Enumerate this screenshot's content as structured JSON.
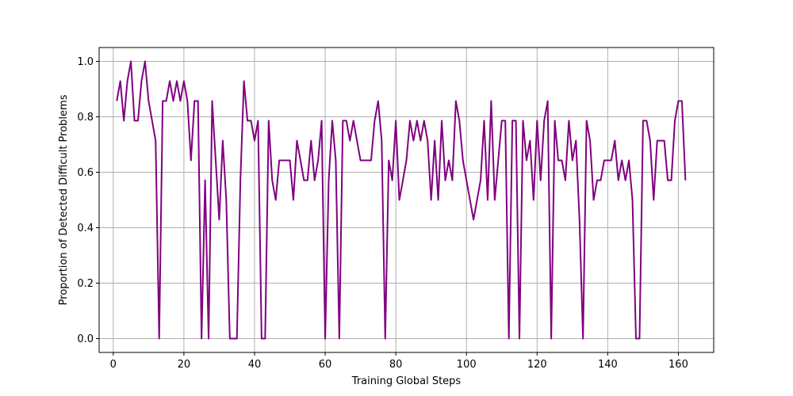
{
  "chart_data": {
    "type": "line",
    "title": "",
    "xlabel": "Training Global Steps",
    "ylabel": "Proportion of Detected Difficult Problems",
    "xlim": [
      -4,
      170
    ],
    "ylim": [
      -0.05,
      1.05
    ],
    "xticks": [
      0,
      20,
      40,
      60,
      80,
      100,
      120,
      140,
      160
    ],
    "yticks": [
      0.0,
      0.2,
      0.4,
      0.6,
      0.8,
      1.0
    ],
    "xtick_labels": [
      "0",
      "20",
      "40",
      "60",
      "80",
      "100",
      "120",
      "140",
      "160"
    ],
    "ytick_labels": [
      "0.0",
      "0.2",
      "0.4",
      "0.6",
      "0.8",
      "1.0"
    ],
    "grid": true,
    "series": [
      {
        "color": "#800080",
        "x": [
          1,
          2,
          3,
          4,
          5,
          6,
          7,
          8,
          9,
          10,
          11,
          12,
          13,
          14,
          15,
          16,
          17,
          18,
          19,
          20,
          21,
          22,
          23,
          24,
          25,
          26,
          27,
          28,
          29,
          30,
          31,
          32,
          33,
          34,
          35,
          36,
          37,
          38,
          39,
          40,
          41,
          42,
          43,
          44,
          45,
          46,
          47,
          48,
          49,
          50,
          51,
          52,
          53,
          54,
          55,
          56,
          57,
          58,
          59,
          60,
          61,
          62,
          63,
          64,
          65,
          66,
          67,
          68,
          69,
          70,
          71,
          72,
          73,
          74,
          75,
          76,
          77,
          78,
          79,
          80,
          81,
          82,
          83,
          84,
          85,
          86,
          87,
          88,
          89,
          90,
          91,
          92,
          93,
          94,
          95,
          96,
          97,
          98,
          99,
          100,
          101,
          102,
          103,
          104,
          105,
          106,
          107,
          108,
          109,
          110,
          111,
          112,
          113,
          114,
          115,
          116,
          117,
          118,
          119,
          120,
          121,
          122,
          123,
          124,
          125,
          126,
          127,
          128,
          129,
          130,
          131,
          132,
          133,
          134,
          135,
          136,
          137,
          138,
          139,
          140,
          141,
          142,
          143,
          144,
          145,
          146,
          147,
          148,
          149,
          150,
          151,
          152,
          153,
          154,
          155,
          156,
          157,
          158,
          159,
          160,
          161,
          162
        ],
        "y": [
          0.857,
          0.929,
          0.786,
          0.929,
          1.0,
          0.786,
          0.786,
          0.929,
          1.0,
          0.857,
          0.786,
          0.714,
          0.0,
          0.857,
          0.857,
          0.929,
          0.857,
          0.929,
          0.857,
          0.929,
          0.857,
          0.643,
          0.857,
          0.857,
          0.0,
          0.571,
          0.0,
          0.857,
          0.643,
          0.429,
          0.714,
          0.5,
          0.0,
          0.0,
          0.0,
          0.571,
          0.929,
          0.786,
          0.786,
          0.714,
          0.786,
          0.0,
          0.0,
          0.786,
          0.571,
          0.5,
          0.643,
          0.643,
          0.643,
          0.643,
          0.5,
          0.714,
          0.643,
          0.571,
          0.571,
          0.714,
          0.571,
          0.643,
          0.786,
          0.0,
          0.571,
          0.786,
          0.643,
          0.0,
          0.786,
          0.786,
          0.714,
          0.786,
          0.714,
          0.643,
          0.643,
          0.643,
          0.643,
          0.786,
          0.857,
          0.714,
          0.0,
          0.643,
          0.571,
          0.786,
          0.5,
          0.571,
          0.643,
          0.786,
          0.714,
          0.786,
          0.714,
          0.786,
          0.714,
          0.5,
          0.714,
          0.5,
          0.786,
          0.571,
          0.643,
          0.571,
          0.857,
          0.786,
          0.643,
          0.571,
          0.5,
          0.429,
          0.5,
          0.571,
          0.786,
          0.5,
          0.857,
          0.5,
          0.643,
          0.786,
          0.786,
          0.0,
          0.786,
          0.786,
          0.0,
          0.786,
          0.643,
          0.714,
          0.5,
          0.786,
          0.571,
          0.786,
          0.857,
          0.0,
          0.786,
          0.643,
          0.643,
          0.571,
          0.786,
          0.643,
          0.714,
          0.429,
          0.0,
          0.786,
          0.714,
          0.5,
          0.571,
          0.571,
          0.643,
          0.643,
          0.643,
          0.714,
          0.571,
          0.643,
          0.571,
          0.643,
          0.5,
          0.0,
          0.0,
          0.786,
          0.786,
          0.714,
          0.5,
          0.714,
          0.714,
          0.714,
          0.571,
          0.571,
          0.786,
          0.857,
          0.857,
          0.571
        ]
      }
    ]
  }
}
